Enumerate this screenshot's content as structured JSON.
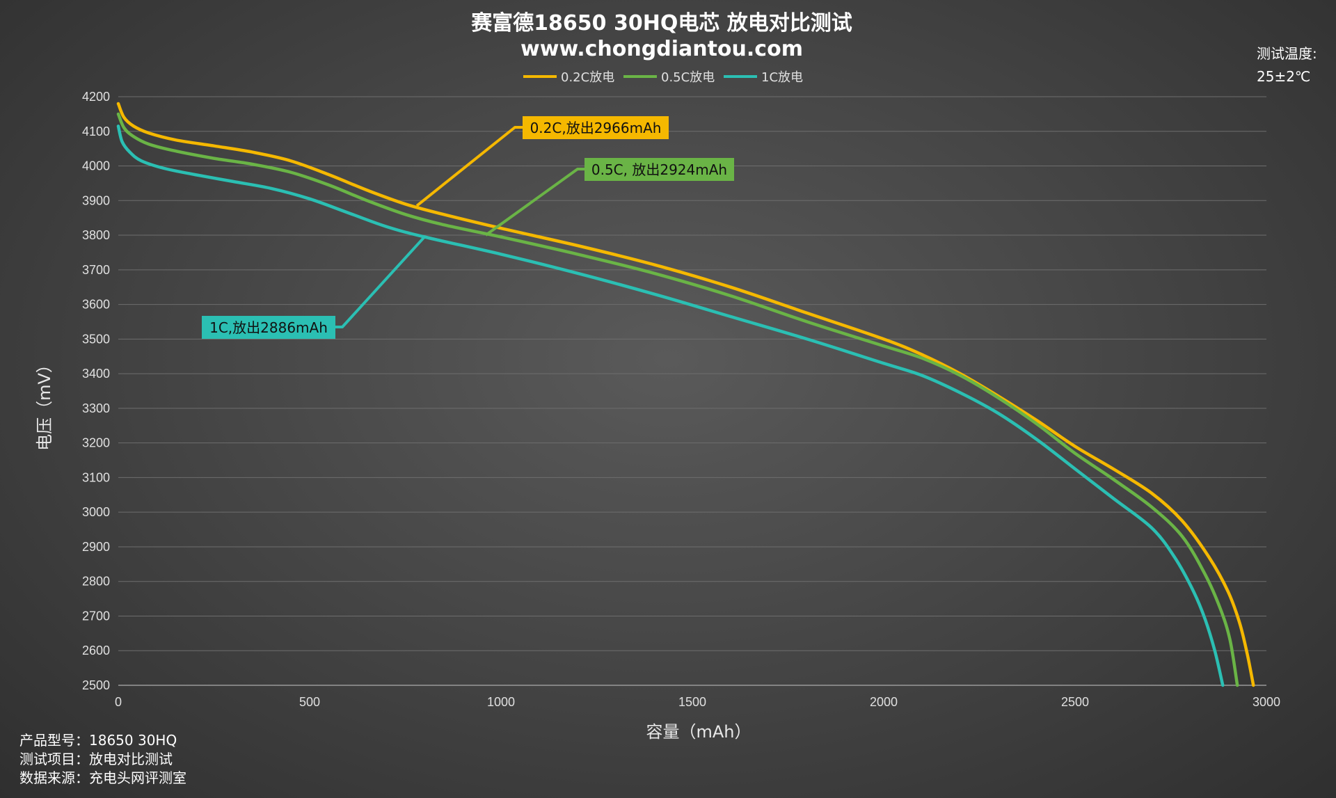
{
  "chart_data": {
    "type": "line",
    "title": "赛富德18650 30HQ电芯 放电对比测试",
    "subtitle": "www.chongdiantou.com",
    "xlabel": "容量（mAh）",
    "ylabel": "电压（mV）",
    "xlim": [
      0,
      3000
    ],
    "ylim": [
      2500,
      4200
    ],
    "x_ticks": [
      0,
      500,
      1000,
      1500,
      2000,
      2500,
      3000
    ],
    "y_ticks": [
      2500,
      2600,
      2700,
      2800,
      2900,
      3000,
      3100,
      3200,
      3300,
      3400,
      3500,
      3600,
      3700,
      3800,
      3900,
      4000,
      4100,
      4200
    ],
    "grid": "horizontal",
    "legend_position": "top-center",
    "series": [
      {
        "name": "0.2C放电",
        "color": "#f5b800",
        "points": [
          [
            0,
            4180
          ],
          [
            15,
            4140
          ],
          [
            40,
            4115
          ],
          [
            80,
            4095
          ],
          [
            150,
            4075
          ],
          [
            250,
            4058
          ],
          [
            350,
            4040
          ],
          [
            450,
            4015
          ],
          [
            550,
            3975
          ],
          [
            650,
            3930
          ],
          [
            750,
            3890
          ],
          [
            850,
            3860
          ],
          [
            1000,
            3820
          ],
          [
            1200,
            3770
          ],
          [
            1400,
            3715
          ],
          [
            1600,
            3650
          ],
          [
            1800,
            3575
          ],
          [
            2000,
            3500
          ],
          [
            2100,
            3455
          ],
          [
            2200,
            3400
          ],
          [
            2300,
            3335
          ],
          [
            2400,
            3265
          ],
          [
            2500,
            3190
          ],
          [
            2600,
            3125
          ],
          [
            2700,
            3055
          ],
          [
            2780,
            2975
          ],
          [
            2850,
            2870
          ],
          [
            2900,
            2770
          ],
          [
            2930,
            2680
          ],
          [
            2950,
            2590
          ],
          [
            2966,
            2500
          ]
        ]
      },
      {
        "name": "0.5C放电",
        "color": "#6ab446",
        "points": [
          [
            0,
            4150
          ],
          [
            15,
            4110
          ],
          [
            40,
            4085
          ],
          [
            80,
            4063
          ],
          [
            150,
            4043
          ],
          [
            250,
            4022
          ],
          [
            350,
            4005
          ],
          [
            450,
            3982
          ],
          [
            550,
            3945
          ],
          [
            650,
            3900
          ],
          [
            750,
            3860
          ],
          [
            850,
            3830
          ],
          [
            1000,
            3795
          ],
          [
            1200,
            3745
          ],
          [
            1400,
            3690
          ],
          [
            1600,
            3625
          ],
          [
            1800,
            3550
          ],
          [
            2000,
            3480
          ],
          [
            2100,
            3445
          ],
          [
            2200,
            3395
          ],
          [
            2300,
            3330
          ],
          [
            2400,
            3255
          ],
          [
            2500,
            3170
          ],
          [
            2600,
            3095
          ],
          [
            2700,
            3015
          ],
          [
            2780,
            2930
          ],
          [
            2840,
            2820
          ],
          [
            2880,
            2720
          ],
          [
            2905,
            2630
          ],
          [
            2924,
            2500
          ]
        ]
      },
      {
        "name": "1C放电",
        "color": "#2bbfb3",
        "points": [
          [
            0,
            4115
          ],
          [
            10,
            4070
          ],
          [
            30,
            4040
          ],
          [
            60,
            4015
          ],
          [
            120,
            3993
          ],
          [
            200,
            3975
          ],
          [
            300,
            3955
          ],
          [
            400,
            3935
          ],
          [
            500,
            3905
          ],
          [
            600,
            3865
          ],
          [
            700,
            3825
          ],
          [
            800,
            3795
          ],
          [
            1000,
            3745
          ],
          [
            1200,
            3690
          ],
          [
            1400,
            3630
          ],
          [
            1600,
            3565
          ],
          [
            1800,
            3500
          ],
          [
            2000,
            3430
          ],
          [
            2100,
            3395
          ],
          [
            2200,
            3345
          ],
          [
            2300,
            3285
          ],
          [
            2400,
            3210
          ],
          [
            2500,
            3125
          ],
          [
            2600,
            3040
          ],
          [
            2700,
            2955
          ],
          [
            2760,
            2870
          ],
          [
            2810,
            2770
          ],
          [
            2840,
            2690
          ],
          [
            2865,
            2600
          ],
          [
            2886,
            2500
          ]
        ]
      }
    ],
    "annotations": [
      {
        "text": "0.2C,放出2966mAh",
        "series": 0,
        "x": 780,
        "y": 3885
      },
      {
        "text": "0.5C, 放出2924mAh",
        "series": 1,
        "x": 960,
        "y": 3800
      },
      {
        "text": "1C,放出2886mAh",
        "series": 2,
        "x": 800,
        "y": 3795
      }
    ]
  },
  "temperature": {
    "label": "测试温度:",
    "value": "25±2℃"
  },
  "info": {
    "model": "产品型号：18650 30HQ",
    "item": "测试项目：放电对比测试",
    "source": "数据来源：充电头网评测室"
  }
}
